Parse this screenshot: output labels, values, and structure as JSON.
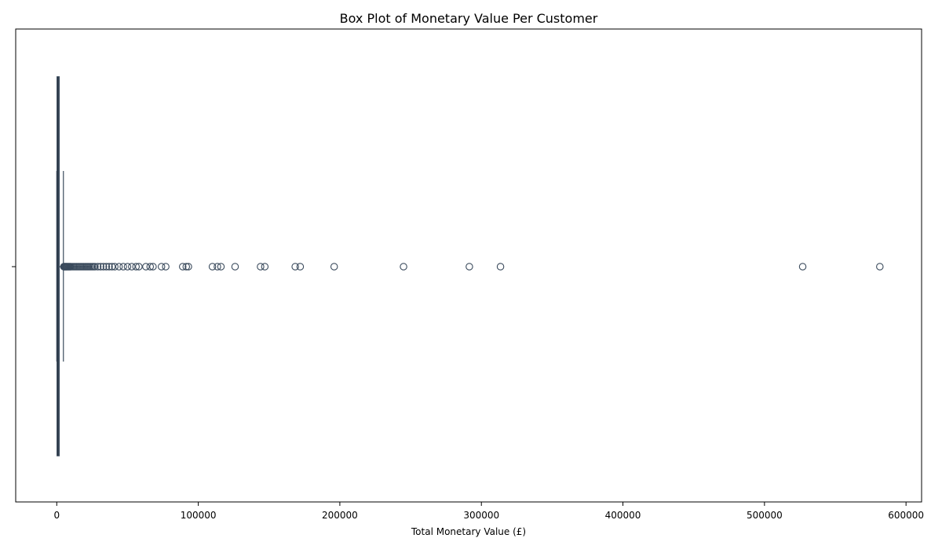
{
  "chart_data": {
    "type": "box",
    "orientation": "horizontal",
    "title": "Box Plot of Monetary Value Per Customer",
    "xlabel": "Total Monetary Value (£)",
    "ylabel": "",
    "xlim": [
      -29000,
      611000
    ],
    "xticks": [
      0,
      100000,
      200000,
      300000,
      400000,
      500000,
      600000
    ],
    "xtick_labels": [
      "0",
      "100000",
      "200000",
      "300000",
      "400000",
      "500000",
      "600000"
    ],
    "grid": false,
    "legend": false,
    "box": {
      "q1": 300,
      "median": 670,
      "q3": 1660,
      "whisker_low": 0,
      "whisker_high": 4700,
      "color": "#3a4a5c"
    },
    "outliers": [
      5000,
      5400,
      5800,
      6200,
      6600,
      7000,
      7500,
      8000,
      8500,
      9000,
      9500,
      10000,
      11000,
      12000,
      13000,
      14000,
      15000,
      16000,
      17000,
      18000,
      19000,
      20000,
      21000,
      22000,
      23000,
      24000,
      25000,
      26000,
      27000,
      29000,
      31000,
      33000,
      35000,
      37000,
      39000,
      41000,
      44000,
      47000,
      50000,
      53000,
      56000,
      58000,
      63000,
      66000,
      68000,
      74000,
      77000,
      89000,
      91500,
      93000,
      110000,
      113500,
      116000,
      126000,
      144000,
      147000,
      168500,
      172000,
      196000,
      245000,
      291500,
      313500,
      527000,
      581500
    ]
  }
}
